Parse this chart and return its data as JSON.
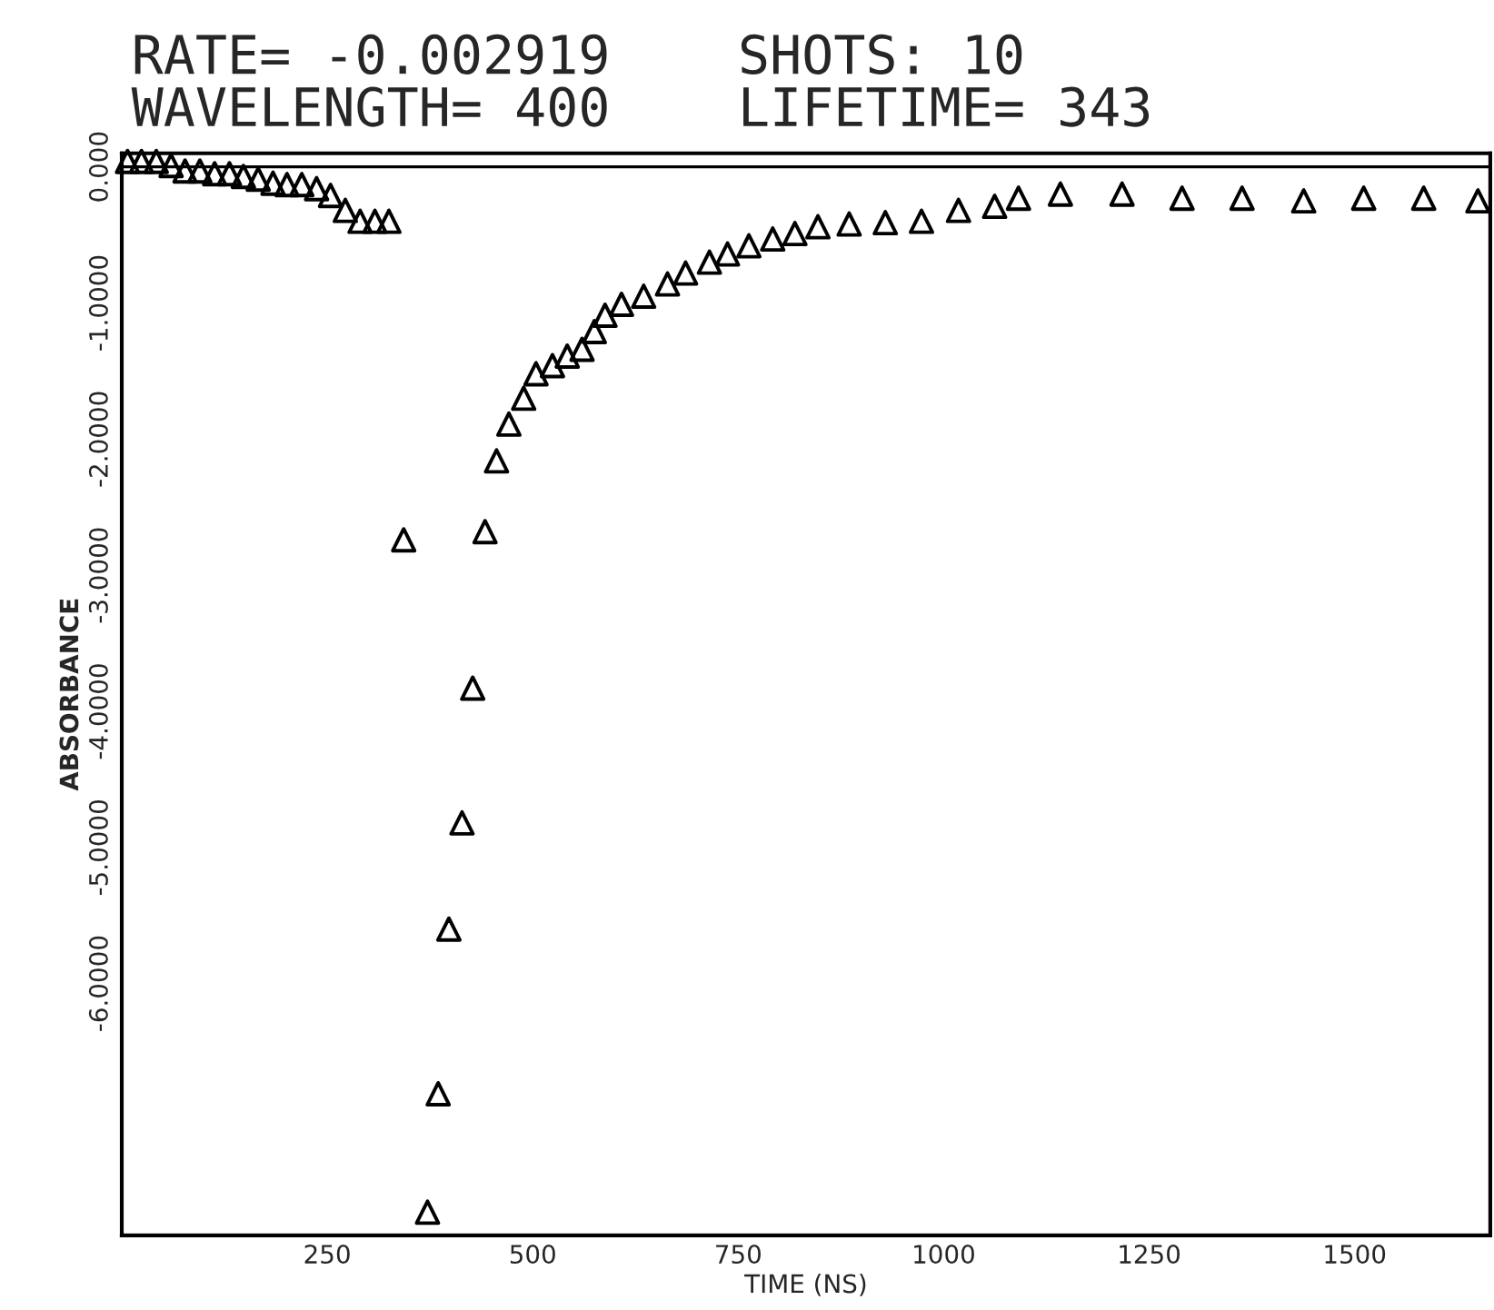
{
  "chart_data": {
    "type": "scatter",
    "title": "RATE= -0.002919    SHOTS: 10",
    "subtitle": "WAVELENGTH= 400    LIFETIME= 343",
    "xlabel": "TIME (NS)",
    "ylabel": "ABSORBANCE",
    "x": [
      7,
      24,
      42,
      60,
      77,
      95,
      113,
      131,
      148,
      166,
      184,
      201,
      219,
      237,
      254,
      272,
      290,
      308,
      325,
      343,
      372,
      385,
      398,
      414,
      427,
      442,
      456,
      471,
      489,
      504,
      524,
      542,
      560,
      575,
      588,
      608,
      635,
      664,
      686,
      715,
      737,
      763,
      792,
      819,
      847,
      885,
      929,
      973,
      1018,
      1062,
      1091,
      1142,
      1217,
      1290,
      1363,
      1438,
      1511,
      1584,
      1650
    ],
    "series": [
      {
        "color": "#000000",
        "values": [
          0.04,
          0.04,
          0.04,
          0.01,
          -0.03,
          -0.03,
          -0.05,
          -0.05,
          -0.07,
          -0.09,
          -0.12,
          -0.13,
          -0.13,
          -0.16,
          -0.21,
          -0.32,
          -0.4,
          -0.4,
          -0.4,
          -2.74,
          -7.68,
          -6.81,
          -5.6,
          -4.82,
          -3.83,
          -2.68,
          -2.16,
          -1.89,
          -1.7,
          -1.52,
          -1.46,
          -1.39,
          -1.34,
          -1.21,
          -1.09,
          -1.01,
          -0.95,
          -0.86,
          -0.78,
          -0.7,
          -0.64,
          -0.58,
          -0.53,
          -0.49,
          -0.44,
          -0.42,
          -0.41,
          -0.4,
          -0.32,
          -0.29,
          -0.23,
          -0.2,
          -0.2,
          -0.23,
          -0.23,
          -0.25,
          -0.23,
          -0.23,
          -0.25
        ]
      }
    ],
    "xlim": [
      0,
      1665
    ],
    "xticks": [
      250,
      500,
      750,
      1000,
      1250,
      1500
    ],
    "ylim": [
      -7.85,
      0.1
    ],
    "yticks": [
      {
        "value": -6,
        "label": "-6.0000"
      },
      {
        "value": -5,
        "label": "-5.0000"
      },
      {
        "value": -4,
        "label": "-4.0000"
      },
      {
        "value": -3,
        "label": "-3.0000"
      },
      {
        "value": -2,
        "label": "-2.0000"
      },
      {
        "value": -1,
        "label": "-1.0000"
      },
      {
        "value": 0,
        "label": "0.000"
      }
    ],
    "ref_lines": [
      {
        "axis": "y",
        "value": 0,
        "color": "#000000"
      }
    ],
    "marker": "triangle",
    "grid": false,
    "legend": false
  }
}
